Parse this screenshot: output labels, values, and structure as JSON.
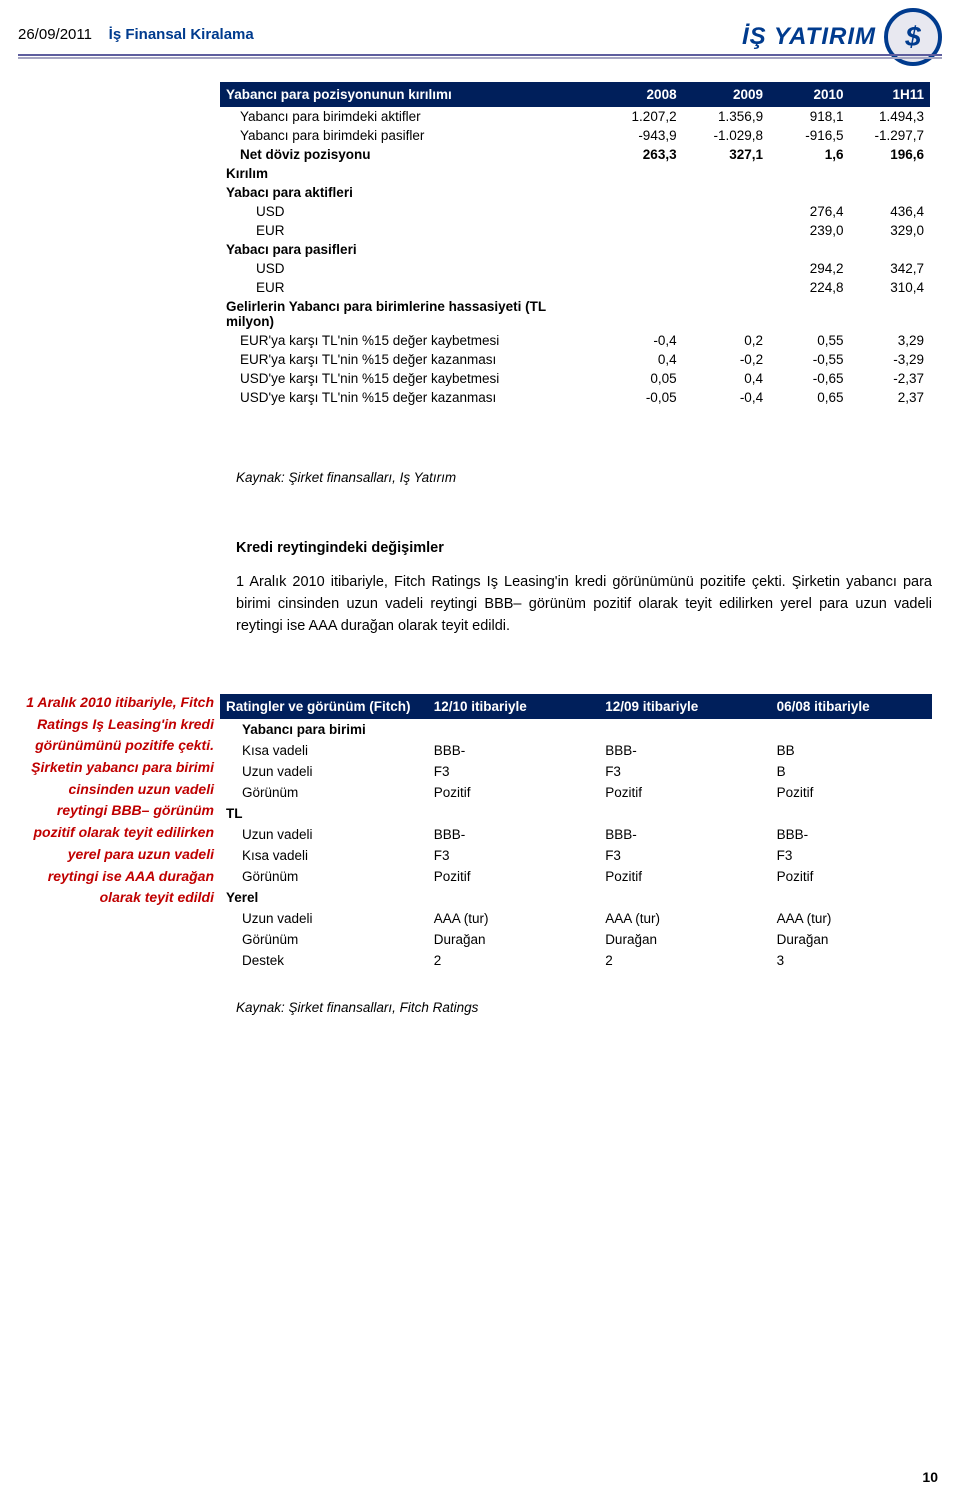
{
  "header": {
    "date": "26/09/2011",
    "company": "İş Finansal Kiralama",
    "brand": "İŞ YATIRIM",
    "badge": "$"
  },
  "table1": {
    "title": "Yabancı para pozisyonunun kırılımı",
    "col_headers": [
      "2008",
      "2009",
      "2010",
      "1H11"
    ],
    "rows": [
      {
        "label": "Yabancı para birimdeki aktifler",
        "indent": 1,
        "bold": false,
        "vals": [
          "1.207,2",
          "1.356,9",
          "918,1",
          "1.494,3"
        ]
      },
      {
        "label": "Yabancı para birimdeki pasifler",
        "indent": 1,
        "bold": false,
        "vals": [
          "-943,9",
          "-1.029,8",
          "-916,5",
          "-1.297,7"
        ]
      },
      {
        "label": "Net döviz pozisyonu",
        "indent": 1,
        "bold": true,
        "vals": [
          "263,3",
          "327,1",
          "1,6",
          "196,6"
        ]
      },
      {
        "label": "Kırılım",
        "indent": 0,
        "bold": true,
        "vals": [
          "",
          "",
          "",
          ""
        ]
      },
      {
        "label": "Yabacı para aktifleri",
        "indent": 0,
        "bold": true,
        "vals": [
          "",
          "",
          "",
          ""
        ]
      },
      {
        "label": "USD",
        "indent": 2,
        "bold": false,
        "vals": [
          "",
          "",
          "276,4",
          "436,4"
        ]
      },
      {
        "label": "EUR",
        "indent": 2,
        "bold": false,
        "vals": [
          "",
          "",
          "239,0",
          "329,0"
        ]
      },
      {
        "label": "Yabacı para pasifleri",
        "indent": 0,
        "bold": true,
        "vals": [
          "",
          "",
          "",
          ""
        ]
      },
      {
        "label": "USD",
        "indent": 2,
        "bold": false,
        "vals": [
          "",
          "",
          "294,2",
          "342,7"
        ]
      },
      {
        "label": "EUR",
        "indent": 2,
        "bold": false,
        "vals": [
          "",
          "",
          "224,8",
          "310,4"
        ]
      },
      {
        "label": "Gelirlerin Yabancı para birimlerine hassasiyeti (TL milyon)",
        "indent": 0,
        "bold": true,
        "vals": [
          "",
          "",
          "",
          ""
        ]
      },
      {
        "label": "EUR'ya karşı TL'nin %15 değer kaybetmesi",
        "indent": 1,
        "bold": false,
        "vals": [
          "-0,4",
          "0,2",
          "0,55",
          "3,29"
        ]
      },
      {
        "label": "EUR'ya karşı TL'nin %15 değer kazanması",
        "indent": 1,
        "bold": false,
        "vals": [
          "0,4",
          "-0,2",
          "-0,55",
          "-3,29"
        ]
      },
      {
        "label": "USD'ye karşı TL'nin %15 değer kaybetmesi",
        "indent": 1,
        "bold": false,
        "vals": [
          "0,05",
          "0,4",
          "-0,65",
          "-2,37"
        ]
      },
      {
        "label": "USD'ye karşı TL'nin %15 değer kazanması",
        "indent": 1,
        "bold": false,
        "vals": [
          "-0,05",
          "-0,4",
          "0,65",
          "2,37"
        ]
      }
    ],
    "col_widths": [
      "380px",
      "80px",
      "86px",
      "80px",
      "80px"
    ]
  },
  "source1": "Kaynak: Şirket finansalları, Iş Yatırım",
  "section_title": "Kredi reytingindeki değişimler",
  "bodytext": "1 Aralık 2010 itibariyle, Fitch Ratings Iş Leasing'in kredi görünümünü pozitife çekti. Şirketin yabancı para birimi cinsinden uzun vadeli reytingi BBB– görünüm pozitif olarak teyit edilirken yerel para uzun vadeli reytingi ise AAA durağan olarak teyit edildi.",
  "sidebar": "1 Aralık 2010 itibariyle, Fitch Ratings Iş Leasing'in kredi görünümünü pozitife çekti. Şirketin yabancı para birimi cinsinden uzun vadeli reytingi BBB– görünüm pozitif olarak teyit edilirken yerel para uzun vadeli reytingi ise AAA durağan olarak teyit edildi",
  "table2": {
    "title": "Ratingler ve görünüm (Fitch)",
    "col_headers": [
      "12/10 itibariyle",
      "12/09 itibariyle",
      "06/08 itibariyle"
    ],
    "rows": [
      {
        "label": "Yabancı para birimi",
        "indent": 1,
        "bold": true,
        "vals": [
          "",
          "",
          ""
        ]
      },
      {
        "label": "Kısa vadeli",
        "indent": 1,
        "bold": false,
        "vals": [
          "BBB-",
          "BBB-",
          "BB"
        ]
      },
      {
        "label": "Uzun vadeli",
        "indent": 1,
        "bold": false,
        "vals": [
          "F3",
          "F3",
          "B"
        ]
      },
      {
        "label": "Görünüm",
        "indent": 1,
        "bold": false,
        "vals": [
          "Pozitif",
          "Pozitif",
          "Pozitif"
        ]
      },
      {
        "label": "TL",
        "indent": 0,
        "bold": true,
        "vals": [
          "",
          "",
          ""
        ]
      },
      {
        "label": "Uzun vadeli",
        "indent": 1,
        "bold": false,
        "vals": [
          "BBB-",
          "BBB-",
          "BBB-"
        ]
      },
      {
        "label": "Kısa vadeli",
        "indent": 1,
        "bold": false,
        "vals": [
          "F3",
          "F3",
          "F3"
        ]
      },
      {
        "label": "Görünüm",
        "indent": 1,
        "bold": false,
        "vals": [
          "Pozitif",
          "Pozitif",
          "Pozitif"
        ]
      },
      {
        "label": "Yerel",
        "indent": 0,
        "bold": true,
        "vals": [
          "",
          "",
          ""
        ]
      },
      {
        "label": "Uzun vadeli",
        "indent": 1,
        "bold": false,
        "vals": [
          "AAA (tur)",
          "AAA (tur)",
          "AAA (tur)"
        ]
      },
      {
        "label": "Görünüm",
        "indent": 1,
        "bold": false,
        "vals": [
          "Durağan",
          "Durağan",
          "Durağan"
        ]
      },
      {
        "label": "Destek",
        "indent": 1,
        "bold": false,
        "vals": [
          "2",
          "2",
          "3"
        ]
      }
    ],
    "col_widths": [
      "206px",
      "170px",
      "170px",
      "160px"
    ]
  },
  "source2": "Kaynak: Şirket finansalları, Fitch Ratings",
  "page_number": "10",
  "colors": {
    "header_bg": "#001f5b",
    "header_fg": "#ffffff",
    "brand_color": "#003b8e",
    "rule1": "#5e5e9e",
    "rule2": "#a6a6c2",
    "sidebar_color": "#c00000"
  }
}
